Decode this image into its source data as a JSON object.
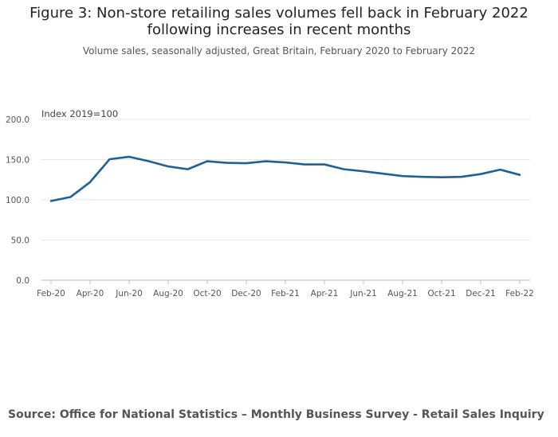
{
  "title_line1": "Figure 3: Non-store retailing sales volumes fell back in February 2022",
  "title_line2": "following increases in recent months",
  "subtitle": "Volume sales, seasonally adjusted, Great Britain, February 2020 to February 2022",
  "source": "Source: Office for National Statistics – Monthly Business Survey - Retail Sales Inquiry",
  "colors": {
    "line": "#206095",
    "grid": "#e6e6e6"
  },
  "chart_data": {
    "type": "line",
    "title": "Figure 3: Non-store retailing sales volumes fell back in February 2022 following increases in recent months",
    "ylabel": "Index 2019=100",
    "xlabel": "",
    "ylim": [
      0,
      200
    ],
    "yticks": [
      "0.0",
      "50.0",
      "100.0",
      "150.0",
      "200.0"
    ],
    "ytick_values": [
      0,
      50,
      100,
      150,
      200
    ],
    "x": [
      "Feb-20",
      "Mar-20",
      "Apr-20",
      "May-20",
      "Jun-20",
      "Jul-20",
      "Aug-20",
      "Sep-20",
      "Oct-20",
      "Nov-20",
      "Dec-20",
      "Jan-21",
      "Feb-21",
      "Mar-21",
      "Apr-21",
      "May-21",
      "Jun-21",
      "Jul-21",
      "Aug-21",
      "Sep-21",
      "Oct-21",
      "Nov-21",
      "Dec-21",
      "Jan-22",
      "Feb-22"
    ],
    "xtick_labels": [
      "Feb-20",
      "Apr-20",
      "Jun-20",
      "Aug-20",
      "Oct-20",
      "Dec-20",
      "Feb-21",
      "Apr-21",
      "Jun-21",
      "Aug-21",
      "Oct-21",
      "Dec-21",
      "Feb-22"
    ],
    "series": [
      {
        "name": "Non-store retailing",
        "values": [
          98.5,
          103.5,
          122,
          150.5,
          153.5,
          148,
          141.5,
          138,
          148,
          146,
          145.5,
          148,
          146.5,
          144,
          144,
          138,
          135.5,
          132.5,
          129.5,
          128.5,
          128,
          128.5,
          132,
          137.5,
          131
        ]
      }
    ]
  }
}
